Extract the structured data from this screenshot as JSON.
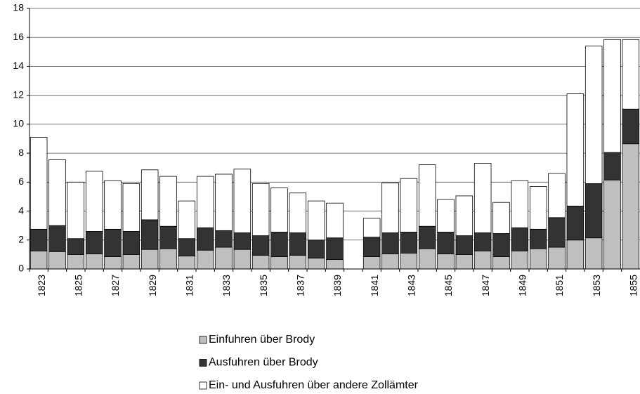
{
  "chart_data": {
    "type": "stacked_bar",
    "categories": [
      "1823",
      null,
      "1825",
      null,
      "1827",
      null,
      "1829",
      null,
      "1831",
      null,
      "1833",
      null,
      "1835",
      null,
      "1837",
      null,
      "1839",
      null,
      "1841",
      null,
      "1843",
      null,
      "1845",
      null,
      "1847",
      null,
      "1849",
      null,
      "1851",
      null,
      "1853",
      null,
      "1855"
    ],
    "series": [
      {
        "name": "Einfuhren über Brody",
        "color": "#bfbfbf",
        "values": [
          1.25,
          1.2,
          1.0,
          1.05,
          0.85,
          1.0,
          1.35,
          1.4,
          0.9,
          1.3,
          1.5,
          1.35,
          0.95,
          0.85,
          0.95,
          0.75,
          0.65,
          null,
          0.85,
          1.05,
          1.1,
          1.4,
          1.05,
          1.0,
          1.25,
          0.85,
          1.25,
          1.4,
          1.5,
          2.0,
          2.15,
          6.15,
          8.65
        ]
      },
      {
        "name": "Ausfuhren über Brody",
        "color": "#333333",
        "values": [
          1.5,
          1.8,
          1.1,
          1.55,
          1.9,
          1.6,
          2.05,
          1.55,
          1.2,
          1.55,
          1.15,
          1.15,
          1.35,
          1.7,
          1.55,
          1.25,
          1.5,
          null,
          1.35,
          1.45,
          1.45,
          1.55,
          1.5,
          1.3,
          1.25,
          1.6,
          1.6,
          1.35,
          2.05,
          2.35,
          3.75,
          1.9,
          2.4
        ]
      },
      {
        "name": "Ein- und Ausfuhren über andere Zollämter",
        "color": "#ffffff",
        "values": [
          6.35,
          4.55,
          3.9,
          4.15,
          3.35,
          3.3,
          3.45,
          3.45,
          2.6,
          3.55,
          3.9,
          4.4,
          3.6,
          3.05,
          2.75,
          2.7,
          2.4,
          null,
          1.3,
          3.45,
          3.7,
          4.25,
          2.25,
          2.75,
          4.8,
          2.15,
          3.25,
          2.95,
          3.05,
          7.75,
          9.5,
          7.8,
          4.8
        ]
      }
    ],
    "ylim": [
      0,
      18
    ],
    "yticks": [
      0,
      2,
      4,
      6,
      8,
      10,
      12,
      14,
      16,
      18
    ],
    "grid": true
  }
}
